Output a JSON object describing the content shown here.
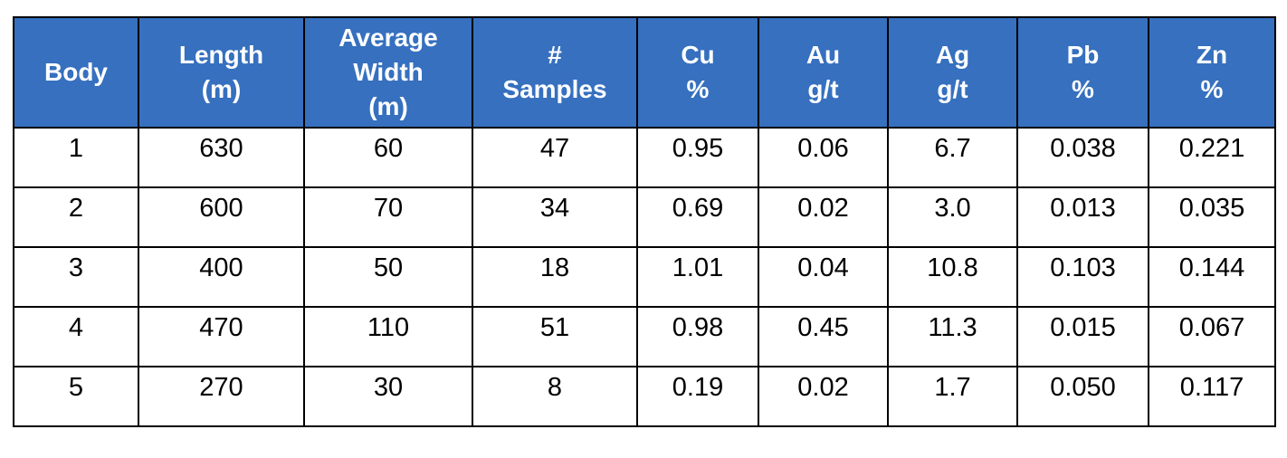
{
  "table": {
    "columns": [
      {
        "key": "body",
        "lines": [
          "Body"
        ]
      },
      {
        "key": "length",
        "lines": [
          "Length",
          "(m)"
        ]
      },
      {
        "key": "avg_width",
        "lines": [
          "Average",
          "Width",
          "(m)"
        ]
      },
      {
        "key": "samples",
        "lines": [
          "#",
          "Samples"
        ]
      },
      {
        "key": "cu",
        "lines": [
          "Cu",
          "%"
        ]
      },
      {
        "key": "au",
        "lines": [
          "Au",
          "g/t"
        ]
      },
      {
        "key": "ag",
        "lines": [
          "Ag",
          "g/t"
        ]
      },
      {
        "key": "pb",
        "lines": [
          "Pb",
          "%"
        ]
      },
      {
        "key": "zn",
        "lines": [
          "Zn",
          "%"
        ]
      }
    ],
    "rows": [
      [
        "1",
        "630",
        "60",
        "47",
        "0.95",
        "0.06",
        "6.7",
        "0.038",
        "0.221"
      ],
      [
        "2",
        "600",
        "70",
        "34",
        "0.69",
        "0.02",
        "3.0",
        "0.013",
        "0.035"
      ],
      [
        "3",
        "400",
        "50",
        "18",
        "1.01",
        "0.04",
        "10.8",
        "0.103",
        "0.144"
      ],
      [
        "4",
        "470",
        "110",
        "51",
        "0.98",
        "0.45",
        "11.3",
        "0.015",
        "0.067"
      ],
      [
        "5",
        "270",
        "30",
        "8",
        "0.19",
        "0.02",
        "1.7",
        "0.050",
        "0.117"
      ]
    ]
  },
  "colors": {
    "header_bg": "#3670bf",
    "header_text": "#ffffff",
    "border": "#000000"
  }
}
